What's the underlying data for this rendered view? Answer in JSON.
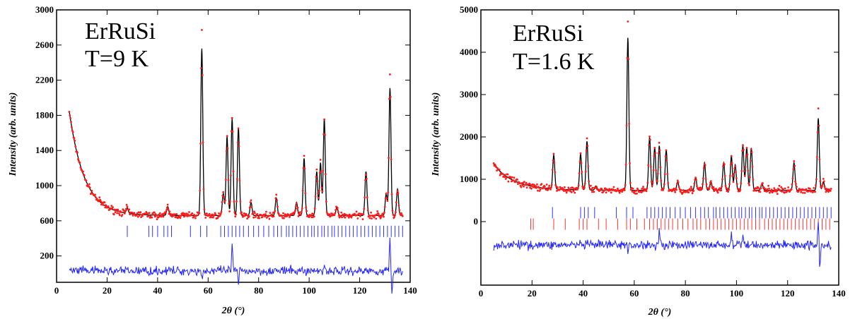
{
  "chart_data": [
    {
      "type": "scatter",
      "title": "ErRuSi",
      "subtitle": "T=9 K",
      "xlabel": "2θ (°)",
      "ylabel": "Intensity (arb. units)",
      "xlim": [
        0,
        140
      ],
      "ylim": [
        -100,
        3000
      ],
      "xticks": [
        0,
        20,
        40,
        60,
        80,
        100,
        120,
        140
      ],
      "yticks": [
        200,
        600,
        1000,
        1400,
        1800,
        2200,
        2600,
        3000
      ],
      "grid": false,
      "colors": {
        "observed": "#ff1a1a",
        "calculated": "#000000",
        "bragg": "#3333ff",
        "difference": "#2222ff"
      },
      "background": {
        "start_x": 5,
        "start_y": 1850,
        "floor": 660,
        "decay": 6
      },
      "peaks": [
        {
          "x": 28,
          "h": 60
        },
        {
          "x": 44,
          "h": 100
        },
        {
          "x": 57.5,
          "h": 1900
        },
        {
          "x": 66,
          "h": 250
        },
        {
          "x": 67.5,
          "h": 900
        },
        {
          "x": 69.5,
          "h": 1100
        },
        {
          "x": 72,
          "h": 1000
        },
        {
          "x": 77,
          "h": 150
        },
        {
          "x": 87,
          "h": 200
        },
        {
          "x": 95,
          "h": 150
        },
        {
          "x": 98,
          "h": 650
        },
        {
          "x": 103,
          "h": 500
        },
        {
          "x": 104.5,
          "h": 600
        },
        {
          "x": 106,
          "h": 1100
        },
        {
          "x": 111,
          "h": 100
        },
        {
          "x": 122.5,
          "h": 500
        },
        {
          "x": 130.5,
          "h": 250
        },
        {
          "x": 132,
          "h": 1450
        },
        {
          "x": 135,
          "h": 300
        }
      ],
      "bragg_ticks": [
        {
          "y": 480,
          "color": "#3333ff",
          "positions": [
            28,
            36.5,
            38,
            40,
            42.5,
            44,
            45.5,
            53,
            57,
            59.5,
            65,
            66.5,
            68,
            69.5,
            71,
            72.5,
            74,
            76,
            78,
            80,
            82,
            84,
            86,
            87.5,
            89,
            91,
            92,
            93.5,
            95,
            96.5,
            98,
            99.5,
            101,
            102,
            103.5,
            105,
            106,
            107.5,
            109,
            110,
            111.5,
            113,
            114.5,
            116,
            117.5,
            119,
            120.5,
            122,
            123.5,
            125,
            126.5,
            128,
            129.5,
            131,
            132.5,
            134,
            135.5,
            137
          ]
        }
      ],
      "difference": {
        "offset": 30,
        "spikes": [
          {
            "x": 57.5,
            "amp": -90
          },
          {
            "x": 69.5,
            "amp": 320
          },
          {
            "x": 72,
            "amp": -160
          },
          {
            "x": 106,
            "amp": 80
          },
          {
            "x": 132,
            "amp": 380
          },
          {
            "x": 132.8,
            "amp": -280
          }
        ]
      }
    },
    {
      "type": "scatter",
      "title": "ErRuSi",
      "subtitle": "T=1.6 K",
      "xlabel": "2θ (°)",
      "ylabel": "Intensity (arb. units)",
      "xlim": [
        0,
        140
      ],
      "ylim": [
        -1500,
        5000
      ],
      "xticks": [
        0,
        20,
        40,
        60,
        80,
        100,
        120,
        140
      ],
      "yticks": [
        0,
        1000,
        2000,
        3000,
        4000,
        5000
      ],
      "grid": false,
      "colors": {
        "observed": "#ff1a1a",
        "calculated": "#000000",
        "bragg": "#3333ff",
        "bragg2": "#ff3333",
        "difference": "#2222ff"
      },
      "background": {
        "start_x": 5,
        "start_y": 1350,
        "floor": 740,
        "decay": 8
      },
      "peaks": [
        {
          "x": 28.5,
          "h": 800
        },
        {
          "x": 39,
          "h": 850
        },
        {
          "x": 41.5,
          "h": 1150
        },
        {
          "x": 45,
          "h": 100
        },
        {
          "x": 57.5,
          "h": 3600
        },
        {
          "x": 66,
          "h": 1250
        },
        {
          "x": 68,
          "h": 1000
        },
        {
          "x": 69.8,
          "h": 1050
        },
        {
          "x": 72.5,
          "h": 950
        },
        {
          "x": 77,
          "h": 200
        },
        {
          "x": 84,
          "h": 300
        },
        {
          "x": 87.5,
          "h": 650
        },
        {
          "x": 90,
          "h": 200
        },
        {
          "x": 95,
          "h": 650
        },
        {
          "x": 98,
          "h": 800
        },
        {
          "x": 99.5,
          "h": 600
        },
        {
          "x": 102.5,
          "h": 1050
        },
        {
          "x": 104,
          "h": 1000
        },
        {
          "x": 105.8,
          "h": 1000
        },
        {
          "x": 110,
          "h": 150
        },
        {
          "x": 122.5,
          "h": 650
        },
        {
          "x": 132,
          "h": 1700
        },
        {
          "x": 134,
          "h": 200
        }
      ],
      "bragg_ticks": [
        {
          "y": 210,
          "color": "#3333ff",
          "positions": [
            28,
            39,
            40.5,
            42,
            44.5,
            53,
            57,
            59.5,
            65,
            66.5,
            68,
            69.5,
            71,
            72.5,
            74,
            76,
            78,
            80,
            82,
            84,
            86,
            87.5,
            89,
            91,
            92,
            93.5,
            95,
            96.5,
            98,
            99.5,
            101,
            102,
            103.5,
            105,
            106,
            107.5,
            109,
            110,
            111.5,
            113,
            114.5,
            116,
            117.5,
            119,
            120.5,
            122,
            123.5,
            125,
            126.5,
            128,
            129.5,
            131,
            132.5,
            134,
            135.5,
            137
          ]
        },
        {
          "y": -60,
          "color": "#ff3333",
          "positions": [
            19.5,
            20.5,
            28.5,
            33,
            38.5,
            40,
            41.5,
            46,
            49,
            53.5,
            57,
            58.5,
            61,
            64,
            66,
            67.5,
            69,
            70.5,
            72,
            73.5,
            75,
            77,
            79,
            81,
            83,
            84.5,
            86,
            88,
            89.5,
            91,
            92.5,
            94,
            95.5,
            97,
            98.5,
            100,
            101.5,
            103,
            104.5,
            106,
            107.5,
            109,
            111,
            112.5,
            114,
            115.5,
            117,
            118.5,
            120,
            121.5,
            123,
            124.5,
            126,
            127.5,
            129,
            130.5,
            132,
            133.5,
            135,
            136.5
          ]
        }
      ],
      "difference": {
        "offset": -550,
        "spikes": [
          {
            "x": 57.5,
            "amp": -200
          },
          {
            "x": 69.8,
            "amp": 400
          },
          {
            "x": 98,
            "amp": 200
          },
          {
            "x": 102.5,
            "amp": 250
          },
          {
            "x": 132,
            "amp": 600
          },
          {
            "x": 132.6,
            "amp": -500
          }
        ]
      }
    }
  ]
}
